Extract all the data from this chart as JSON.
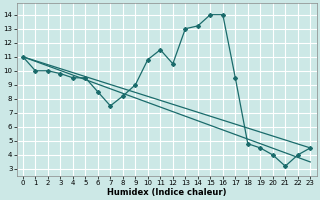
{
  "xlabel": "Humidex (Indice chaleur)",
  "ylabel": "",
  "background_color": "#cce8e6",
  "grid_color": "#ffffff",
  "line_color": "#1a6b6b",
  "xlim": [
    -0.5,
    23.5
  ],
  "ylim": [
    2.5,
    14.8
  ],
  "yticks": [
    3,
    4,
    5,
    6,
    7,
    8,
    9,
    10,
    11,
    12,
    13,
    14
  ],
  "xticks": [
    0,
    1,
    2,
    3,
    4,
    5,
    6,
    7,
    8,
    9,
    10,
    11,
    12,
    13,
    14,
    15,
    16,
    17,
    18,
    19,
    20,
    21,
    22,
    23
  ],
  "series": [
    [
      0,
      11
    ],
    [
      1,
      10
    ],
    [
      2,
      10
    ],
    [
      3,
      9.8
    ],
    [
      4,
      9.5
    ],
    [
      5,
      9.5
    ],
    [
      6,
      8.5
    ],
    [
      7,
      7.5
    ],
    [
      8,
      8.2
    ],
    [
      9,
      9.0
    ],
    [
      10,
      10.8
    ],
    [
      11,
      11.5
    ],
    [
      12,
      10.5
    ],
    [
      13,
      13.0
    ],
    [
      14,
      13.2
    ],
    [
      15,
      14.0
    ],
    [
      16,
      14.0
    ],
    [
      17,
      9.5
    ],
    [
      18,
      4.8
    ],
    [
      19,
      4.5
    ],
    [
      20,
      4.0
    ],
    [
      21,
      3.2
    ],
    [
      22,
      4.0
    ],
    [
      23,
      4.5
    ]
  ],
  "line2": [
    [
      0,
      11
    ],
    [
      23,
      4.5
    ]
  ],
  "line3": [
    [
      0,
      11
    ],
    [
      23,
      3.5
    ]
  ]
}
